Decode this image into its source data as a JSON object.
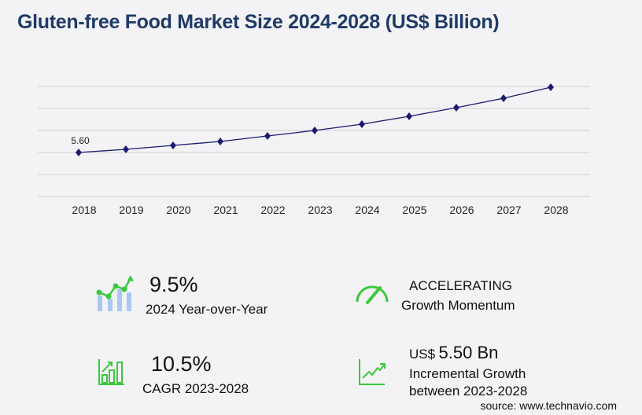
{
  "title": "Gluten-free Food Market Size 2024-2028 (US$ Billion)",
  "chart_data": {
    "type": "line",
    "title": "Gluten-free Food Market Size 2024-2028 (US$ Billion)",
    "categories": [
      "2018",
      "2019",
      "2020",
      "2021",
      "2022",
      "2023",
      "2024",
      "2025",
      "2026",
      "2027",
      "2028"
    ],
    "values": [
      5.6,
      6.0,
      6.5,
      7.0,
      7.7,
      8.4,
      9.2,
      10.2,
      11.3,
      12.5,
      13.9
    ],
    "data_labels": {
      "2018": "5.60"
    },
    "ylim": [
      0,
      14
    ],
    "grid": true,
    "line_color": "#1a1a72"
  },
  "stats": {
    "yoy_value": "9.5%",
    "yoy_label": "2024 Year-over-Year",
    "momentum_value": "ACCELERATING",
    "momentum_label": "Growth Momentum",
    "cagr_value": "10.5%",
    "cagr_label": "CAGR 2023-2028",
    "incr_prefix": "US$",
    "incr_value": "5.50 Bn",
    "incr_label1": "Incremental Growth",
    "incr_label2": "between 2023-2028"
  },
  "source": "source: www.technavio.com",
  "colors": {
    "accent_green": "#3cc83c",
    "title_blue": "#1f3a68",
    "bar_blue": "#a9c8f0"
  }
}
